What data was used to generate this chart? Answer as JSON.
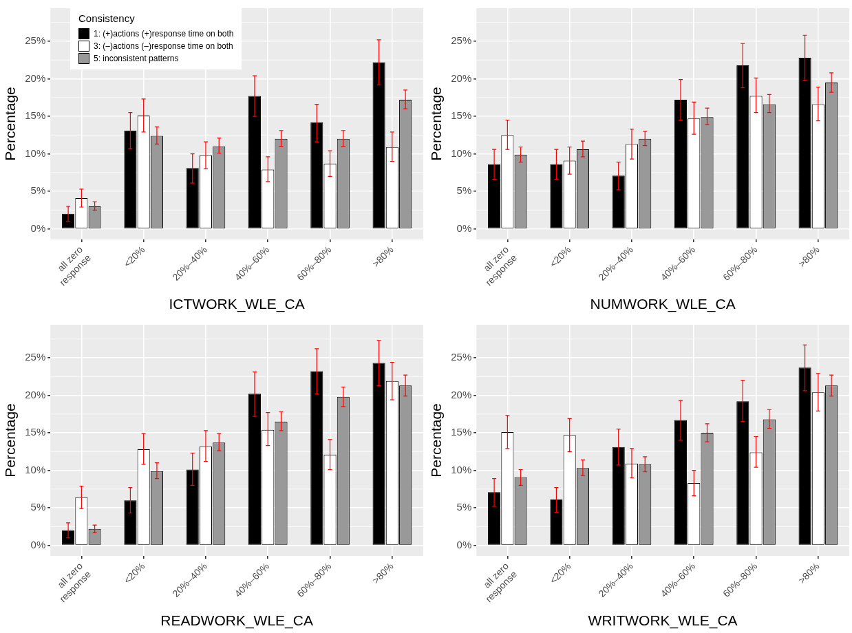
{
  "chart_data": [
    {
      "type": "bar",
      "xlabel": "ICTWORK_WLE_CA",
      "ylabel": "Percentage",
      "legend_title": "Consistency",
      "legend": "top left",
      "grid": true,
      "categories": [
        "all zero response",
        "<20%",
        "20%–40%",
        "40%–60%",
        "60%–80%",
        ">80%"
      ],
      "ylim": [
        -1.4,
        29.4
      ],
      "yticks": [
        {
          "value": 0,
          "label": "0%"
        },
        {
          "value": 5,
          "label": "5%"
        },
        {
          "value": 10,
          "label": "10%"
        },
        {
          "value": 15,
          "label": "15%"
        },
        {
          "value": 20,
          "label": "20%"
        },
        {
          "value": 25,
          "label": "25%"
        }
      ],
      "series": [
        {
          "name": "1: (+)actions (+)response time on both",
          "color": "#000000",
          "values": [
            2.0,
            13.1,
            8.1,
            17.7,
            14.2,
            22.2
          ],
          "errors": [
            [
              1.0,
              3.0
            ],
            [
              10.7,
              15.5
            ],
            [
              6.1,
              10.0
            ],
            [
              15.0,
              20.4
            ],
            [
              11.6,
              16.6
            ],
            [
              19.2,
              25.2
            ]
          ]
        },
        {
          "name": "3: (–)actions (–)response time on both",
          "color": "#ffffff",
          "values": [
            4.1,
            15.1,
            9.8,
            7.9,
            8.7,
            10.9
          ],
          "errors": [
            [
              2.9,
              5.3
            ],
            [
              12.9,
              17.3
            ],
            [
              8.0,
              11.6
            ],
            [
              6.3,
              9.6
            ],
            [
              7.0,
              10.4
            ],
            [
              9.0,
              12.9
            ]
          ]
        },
        {
          "name": "5: inconsistent patterns",
          "color": "#999999",
          "values": [
            3.0,
            12.4,
            11.0,
            12.0,
            12.0,
            17.2
          ],
          "errors": [
            [
              2.5,
              3.6
            ],
            [
              11.3,
              13.6
            ],
            [
              10.1,
              12.1
            ],
            [
              11.0,
              13.1
            ],
            [
              11.0,
              13.1
            ],
            [
              16.0,
              18.5
            ]
          ]
        }
      ]
    },
    {
      "type": "bar",
      "xlabel": "NUMWORK_WLE_CA",
      "ylabel": "Percentage",
      "grid": true,
      "categories": [
        "all zero response",
        "<20%",
        "20%–40%",
        "40%–60%",
        "60%–80%",
        ">80%"
      ],
      "ylim": [
        -1.4,
        29.4
      ],
      "yticks": [
        {
          "value": 0,
          "label": "0%"
        },
        {
          "value": 5,
          "label": "5%"
        },
        {
          "value": 10,
          "label": "10%"
        },
        {
          "value": 15,
          "label": "15%"
        },
        {
          "value": 20,
          "label": "20%"
        },
        {
          "value": 25,
          "label": "25%"
        }
      ],
      "series": [
        {
          "color": "#000000",
          "values": [
            8.6,
            8.6,
            7.1,
            17.2,
            21.8,
            22.8
          ],
          "errors": [
            [
              6.6,
              10.6
            ],
            [
              6.6,
              10.6
            ],
            [
              5.2,
              8.9
            ],
            [
              14.5,
              19.9
            ],
            [
              18.8,
              24.7
            ],
            [
              19.8,
              25.8
            ]
          ]
        },
        {
          "color": "#ffffff",
          "values": [
            12.5,
            9.1,
            11.3,
            14.7,
            17.7,
            16.6
          ],
          "errors": [
            [
              10.6,
              14.5
            ],
            [
              7.3,
              10.9
            ],
            [
              9.3,
              13.3
            ],
            [
              12.6,
              16.9
            ],
            [
              15.5,
              20.1
            ],
            [
              14.4,
              18.9
            ]
          ]
        },
        {
          "color": "#999999",
          "values": [
            9.9,
            10.6,
            12.0,
            14.9,
            16.6,
            19.5
          ],
          "errors": [
            [
              8.9,
              10.9
            ],
            [
              9.6,
              11.7
            ],
            [
              11.1,
              13.0
            ],
            [
              13.9,
              16.1
            ],
            [
              15.5,
              17.9
            ],
            [
              18.2,
              20.8
            ]
          ]
        }
      ]
    },
    {
      "type": "bar",
      "xlabel": "READWORK_WLE_CA",
      "ylabel": "Percentage",
      "grid": true,
      "categories": [
        "all zero response",
        "<20%",
        "20%–40%",
        "40%–60%",
        "60%–80%",
        ">80%"
      ],
      "ylim": [
        -1.4,
        29.4
      ],
      "yticks": [
        {
          "value": 0,
          "label": "0%"
        },
        {
          "value": 5,
          "label": "5%"
        },
        {
          "value": 10,
          "label": "10%"
        },
        {
          "value": 15,
          "label": "15%"
        },
        {
          "value": 20,
          "label": "20%"
        },
        {
          "value": 25,
          "label": "25%"
        }
      ],
      "series": [
        {
          "color": "#000000",
          "values": [
            2.0,
            6.0,
            10.1,
            20.2,
            23.2,
            24.3
          ],
          "errors": [
            [
              1.0,
              3.0
            ],
            [
              4.3,
              7.7
            ],
            [
              8.0,
              12.3
            ],
            [
              17.2,
              23.1
            ],
            [
              20.2,
              26.2
            ],
            [
              21.3,
              27.3
            ]
          ]
        },
        {
          "color": "#ffffff",
          "values": [
            6.4,
            12.8,
            13.2,
            15.4,
            12.1,
            21.9
          ],
          "errors": [
            [
              4.9,
              7.9
            ],
            [
              10.8,
              14.9
            ],
            [
              11.2,
              15.3
            ],
            [
              13.3,
              17.7
            ],
            [
              10.1,
              14.1
            ],
            [
              19.4,
              24.4
            ]
          ]
        },
        {
          "color": "#999999",
          "values": [
            2.2,
            9.9,
            13.7,
            16.5,
            19.8,
            21.3
          ],
          "errors": [
            [
              1.7,
              2.7
            ],
            [
              8.9,
              11.0
            ],
            [
              12.6,
              14.9
            ],
            [
              15.3,
              17.8
            ],
            [
              18.5,
              21.1
            ],
            [
              19.9,
              22.7
            ]
          ]
        }
      ]
    },
    {
      "type": "bar",
      "xlabel": "WRITWORK_WLE_CA",
      "ylabel": "Percentage",
      "grid": true,
      "categories": [
        "all zero response",
        "<20%",
        "20%–40%",
        "40%–60%",
        "60%–80%",
        ">80%"
      ],
      "ylim": [
        -1.4,
        29.4
      ],
      "yticks": [
        {
          "value": 0,
          "label": "0%"
        },
        {
          "value": 5,
          "label": "5%"
        },
        {
          "value": 10,
          "label": "10%"
        },
        {
          "value": 15,
          "label": "15%"
        },
        {
          "value": 20,
          "label": "20%"
        },
        {
          "value": 25,
          "label": "25%"
        }
      ],
      "series": [
        {
          "color": "#000000",
          "values": [
            7.1,
            6.1,
            13.1,
            16.7,
            19.2,
            23.7
          ],
          "errors": [
            [
              5.2,
              8.9
            ],
            [
              4.4,
              7.7
            ],
            [
              10.7,
              15.5
            ],
            [
              14.0,
              19.3
            ],
            [
              16.5,
              22.0
            ],
            [
              20.6,
              26.7
            ]
          ]
        },
        {
          "color": "#ffffff",
          "values": [
            15.1,
            14.7,
            10.9,
            8.3,
            12.4,
            20.4
          ],
          "errors": [
            [
              12.9,
              17.3
            ],
            [
              12.5,
              16.9
            ],
            [
              9.0,
              12.9
            ],
            [
              6.6,
              10.0
            ],
            [
              10.4,
              14.5
            ],
            [
              17.9,
              22.9
            ]
          ]
        },
        {
          "color": "#999999",
          "values": [
            9.1,
            10.3,
            10.8,
            15.0,
            16.8,
            21.3
          ],
          "errors": [
            [
              8.0,
              10.1
            ],
            [
              9.3,
              11.4
            ],
            [
              9.8,
              11.8
            ],
            [
              13.8,
              16.2
            ],
            [
              15.6,
              18.1
            ],
            [
              19.9,
              22.7
            ]
          ]
        }
      ]
    }
  ]
}
